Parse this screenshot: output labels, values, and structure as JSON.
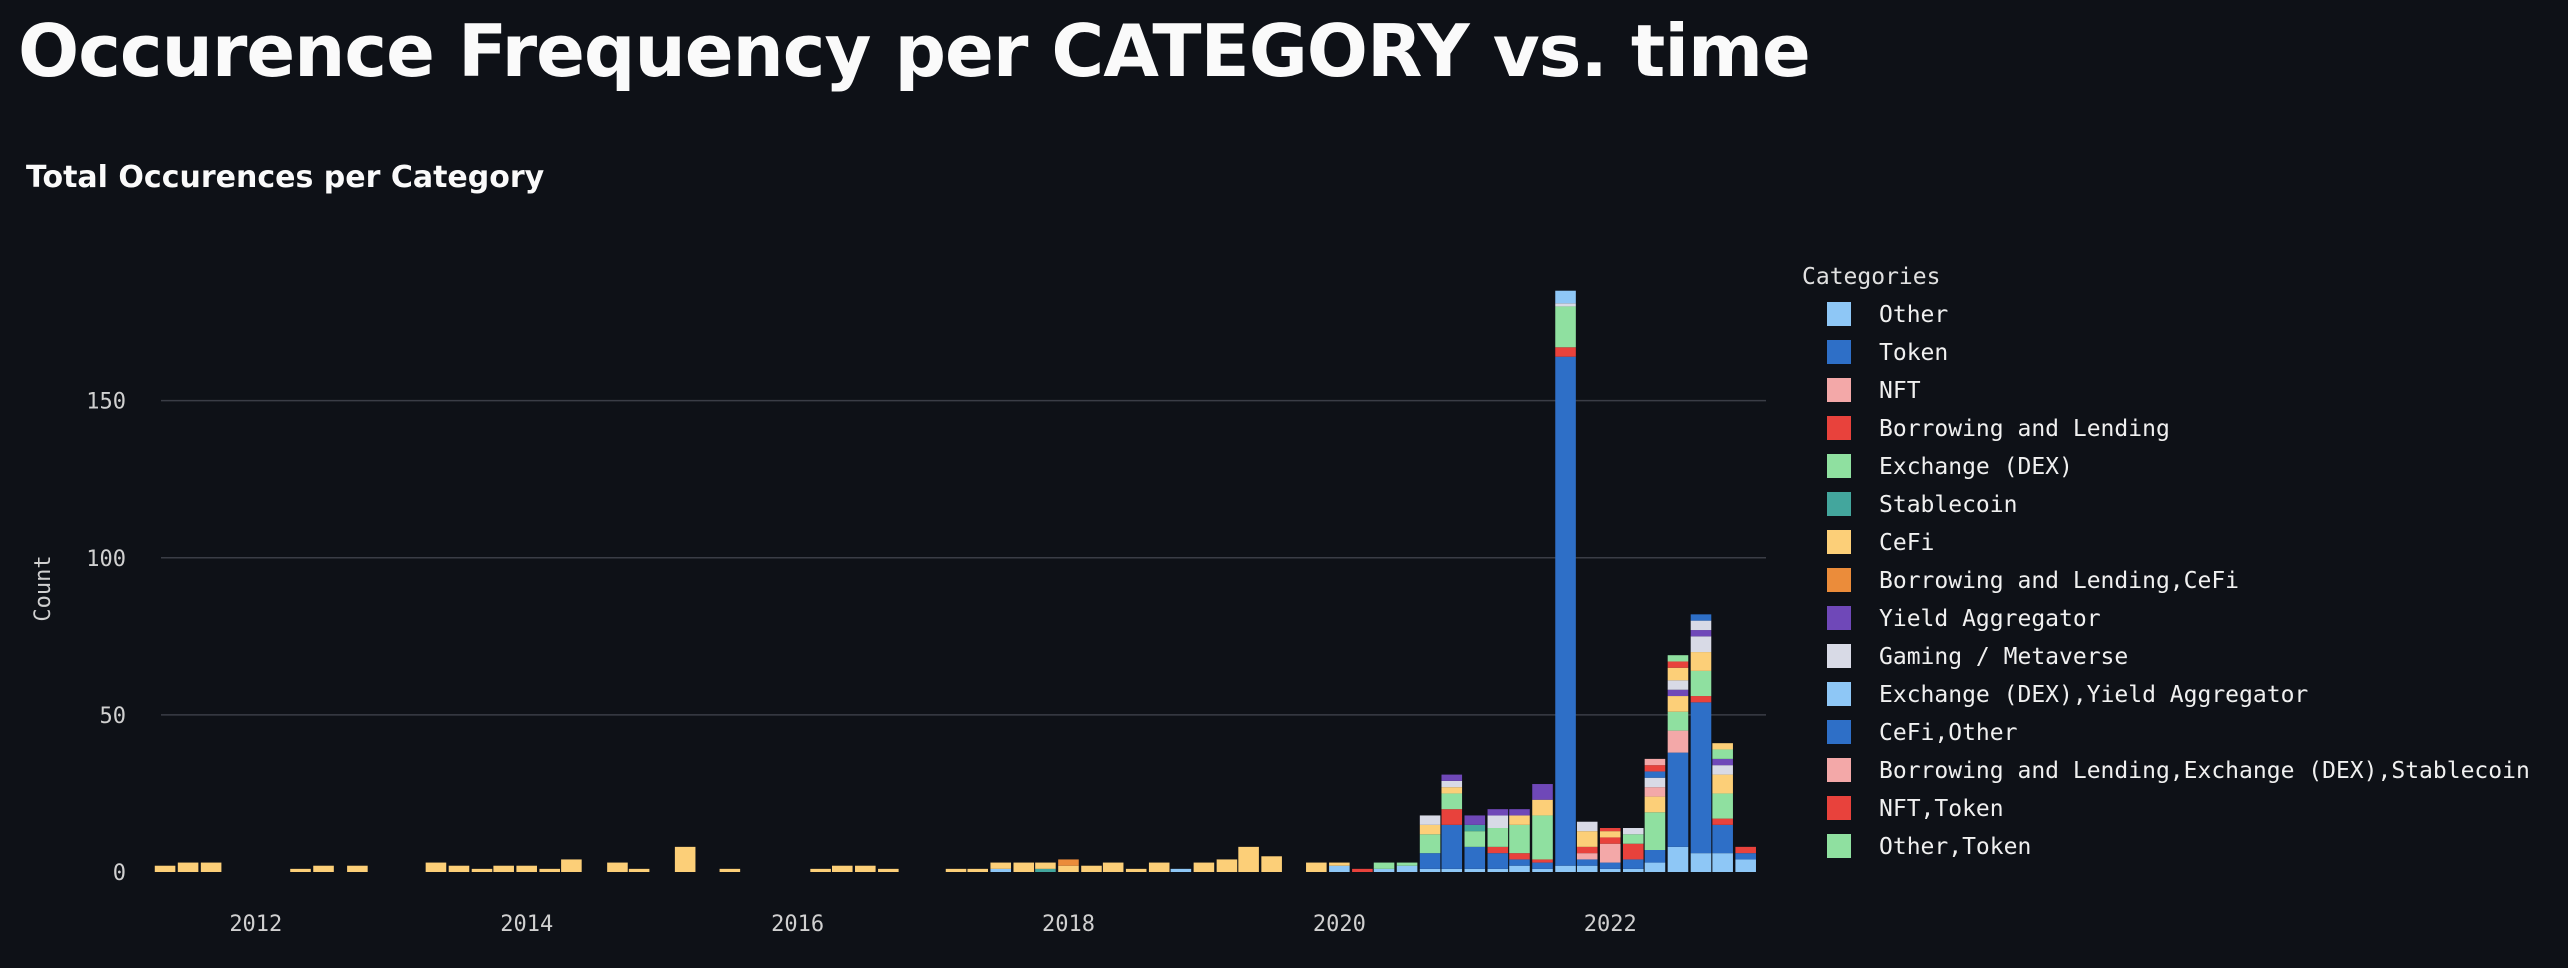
{
  "page": {
    "title": "Occurence Frequency per CATEGORY vs. time"
  },
  "chart_data": {
    "type": "bar",
    "stacked": true,
    "title": "Total Occurences per Category",
    "xlabel": "",
    "ylabel": "Count",
    "ylim": [
      0,
      190
    ],
    "xlim": [
      2011.3,
      2023.15
    ],
    "y_ticks": [
      0,
      50,
      100,
      150
    ],
    "x_ticks": [
      2012,
      2014,
      2016,
      2018,
      2020,
      2022
    ],
    "grid": "horizontal",
    "legend_title": "Categories",
    "legend_placement": "right",
    "bin_width_years": 0.1667,
    "colors": {
      "Other": "#8ec7f6",
      "Token": "#2e6fc7",
      "NFT": "#f3a8a8",
      "Borrowing and Lending": "#e8423c",
      "Exchange (DEX)": "#8fe0a0",
      "Stablecoin": "#43a69d",
      "CeFi": "#fccf78",
      "Borrowing and Lending,CeFi": "#eb8c3a",
      "Yield Aggregator": "#6f48b8",
      "Gaming / Metaverse": "#d8dae6",
      "Exchange (DEX),Yield Aggregator": "#8ec7f6",
      "CeFi,Other": "#2e6fc7",
      "Borrowing and Lending,Exchange (DEX),Stablecoin": "#f3a8a8",
      "NFT,Token": "#e8423c",
      "Other,Token": "#8fe0a0"
    },
    "legend": [
      "Other",
      "Token",
      "NFT",
      "Borrowing and Lending",
      "Exchange (DEX)",
      "Stablecoin",
      "CeFi",
      "Borrowing and Lending,CeFi",
      "Yield Aggregator",
      "Gaming / Metaverse",
      "Exchange (DEX),Yield Aggregator",
      "CeFi,Other",
      "Borrowing and Lending,Exchange (DEX),Stablecoin",
      "NFT,Token",
      "Other,Token"
    ],
    "bars": [
      {
        "x": 2011.33,
        "segments": [
          {
            "category": "CeFi",
            "value": 2
          }
        ]
      },
      {
        "x": 2011.5,
        "segments": [
          {
            "category": "CeFi",
            "value": 3
          }
        ]
      },
      {
        "x": 2011.67,
        "segments": [
          {
            "category": "CeFi",
            "value": 3
          }
        ]
      },
      {
        "x": 2012.33,
        "segments": [
          {
            "category": "CeFi",
            "value": 1
          }
        ]
      },
      {
        "x": 2012.5,
        "segments": [
          {
            "category": "CeFi",
            "value": 2
          }
        ]
      },
      {
        "x": 2012.75,
        "segments": [
          {
            "category": "CeFi",
            "value": 2
          }
        ]
      },
      {
        "x": 2013.33,
        "segments": [
          {
            "category": "CeFi",
            "value": 3
          }
        ]
      },
      {
        "x": 2013.5,
        "segments": [
          {
            "category": "CeFi",
            "value": 2
          }
        ]
      },
      {
        "x": 2013.67,
        "segments": [
          {
            "category": "CeFi",
            "value": 1
          }
        ]
      },
      {
        "x": 2013.83,
        "segments": [
          {
            "category": "CeFi",
            "value": 2
          }
        ]
      },
      {
        "x": 2014.0,
        "segments": [
          {
            "category": "CeFi",
            "value": 2
          }
        ]
      },
      {
        "x": 2014.17,
        "segments": [
          {
            "category": "CeFi",
            "value": 1
          }
        ]
      },
      {
        "x": 2014.33,
        "segments": [
          {
            "category": "CeFi",
            "value": 4
          }
        ]
      },
      {
        "x": 2014.67,
        "segments": [
          {
            "category": "CeFi",
            "value": 3
          }
        ]
      },
      {
        "x": 2014.83,
        "segments": [
          {
            "category": "CeFi",
            "value": 1
          }
        ]
      },
      {
        "x": 2015.17,
        "segments": [
          {
            "category": "CeFi",
            "value": 8
          }
        ]
      },
      {
        "x": 2015.5,
        "segments": [
          {
            "category": "CeFi",
            "value": 1
          }
        ]
      },
      {
        "x": 2016.17,
        "segments": [
          {
            "category": "CeFi",
            "value": 1
          }
        ]
      },
      {
        "x": 2016.33,
        "segments": [
          {
            "category": "CeFi",
            "value": 2
          }
        ]
      },
      {
        "x": 2016.5,
        "segments": [
          {
            "category": "CeFi",
            "value": 2
          }
        ]
      },
      {
        "x": 2016.67,
        "segments": [
          {
            "category": "CeFi",
            "value": 1
          }
        ]
      },
      {
        "x": 2017.17,
        "segments": [
          {
            "category": "CeFi",
            "value": 1
          }
        ]
      },
      {
        "x": 2017.33,
        "segments": [
          {
            "category": "CeFi",
            "value": 1
          }
        ]
      },
      {
        "x": 2017.5,
        "segments": [
          {
            "category": "Other",
            "value": 1
          },
          {
            "category": "CeFi",
            "value": 2
          }
        ]
      },
      {
        "x": 2017.67,
        "segments": [
          {
            "category": "CeFi",
            "value": 3
          }
        ]
      },
      {
        "x": 2017.83,
        "segments": [
          {
            "category": "Stablecoin",
            "value": 1
          },
          {
            "category": "CeFi",
            "value": 2
          }
        ]
      },
      {
        "x": 2018.0,
        "segments": [
          {
            "category": "CeFi",
            "value": 2
          },
          {
            "category": "Borrowing and Lending,CeFi",
            "value": 2
          }
        ]
      },
      {
        "x": 2018.17,
        "segments": [
          {
            "category": "CeFi",
            "value": 2
          }
        ]
      },
      {
        "x": 2018.33,
        "segments": [
          {
            "category": "CeFi",
            "value": 3
          }
        ]
      },
      {
        "x": 2018.5,
        "segments": [
          {
            "category": "CeFi",
            "value": 1
          }
        ]
      },
      {
        "x": 2018.67,
        "segments": [
          {
            "category": "CeFi",
            "value": 3
          }
        ]
      },
      {
        "x": 2018.83,
        "segments": [
          {
            "category": "Other",
            "value": 1
          }
        ]
      },
      {
        "x": 2019.0,
        "segments": [
          {
            "category": "CeFi",
            "value": 3
          }
        ]
      },
      {
        "x": 2019.17,
        "segments": [
          {
            "category": "CeFi",
            "value": 4
          }
        ]
      },
      {
        "x": 2019.33,
        "segments": [
          {
            "category": "CeFi",
            "value": 8
          }
        ]
      },
      {
        "x": 2019.5,
        "segments": [
          {
            "category": "CeFi",
            "value": 5
          }
        ]
      },
      {
        "x": 2019.83,
        "segments": [
          {
            "category": "CeFi",
            "value": 3
          }
        ]
      },
      {
        "x": 2020.0,
        "segments": [
          {
            "category": "Other",
            "value": 2
          },
          {
            "category": "CeFi",
            "value": 1
          }
        ]
      },
      {
        "x": 2020.17,
        "segments": [
          {
            "category": "Borrowing and Lending",
            "value": 1
          }
        ]
      },
      {
        "x": 2020.33,
        "segments": [
          {
            "category": "Other",
            "value": 1
          },
          {
            "category": "Exchange (DEX)",
            "value": 2
          }
        ]
      },
      {
        "x": 2020.5,
        "segments": [
          {
            "category": "Other",
            "value": 2
          },
          {
            "category": "Exchange (DEX)",
            "value": 1
          }
        ]
      },
      {
        "x": 2020.67,
        "segments": [
          {
            "category": "Other",
            "value": 1
          },
          {
            "category": "Token",
            "value": 5
          },
          {
            "category": "Exchange (DEX)",
            "value": 6
          },
          {
            "category": "CeFi",
            "value": 3
          },
          {
            "category": "Gaming / Metaverse",
            "value": 3
          }
        ]
      },
      {
        "x": 2020.83,
        "segments": [
          {
            "category": "Other",
            "value": 1
          },
          {
            "category": "Token",
            "value": 14
          },
          {
            "category": "Borrowing and Lending",
            "value": 5
          },
          {
            "category": "Exchange (DEX)",
            "value": 5
          },
          {
            "category": "CeFi",
            "value": 2
          },
          {
            "category": "Gaming / Metaverse",
            "value": 2
          },
          {
            "category": "Yield Aggregator",
            "value": 2
          }
        ]
      },
      {
        "x": 2021.0,
        "segments": [
          {
            "category": "Other",
            "value": 1
          },
          {
            "category": "Token",
            "value": 7
          },
          {
            "category": "Exchange (DEX)",
            "value": 5
          },
          {
            "category": "Stablecoin",
            "value": 2
          },
          {
            "category": "Yield Aggregator",
            "value": 3
          }
        ]
      },
      {
        "x": 2021.17,
        "segments": [
          {
            "category": "Other",
            "value": 1
          },
          {
            "category": "Token",
            "value": 5
          },
          {
            "category": "Borrowing and Lending",
            "value": 2
          },
          {
            "category": "Exchange (DEX)",
            "value": 6
          },
          {
            "category": "Gaming / Metaverse",
            "value": 4
          },
          {
            "category": "Yield Aggregator",
            "value": 2
          }
        ]
      },
      {
        "x": 2021.33,
        "segments": [
          {
            "category": "Other",
            "value": 2
          },
          {
            "category": "Token",
            "value": 2
          },
          {
            "category": "Borrowing and Lending",
            "value": 2
          },
          {
            "category": "Exchange (DEX)",
            "value": 9
          },
          {
            "category": "CeFi",
            "value": 3
          },
          {
            "category": "Yield Aggregator",
            "value": 2
          }
        ]
      },
      {
        "x": 2021.5,
        "segments": [
          {
            "category": "Other",
            "value": 1
          },
          {
            "category": "Token",
            "value": 2
          },
          {
            "category": "Borrowing and Lending",
            "value": 1
          },
          {
            "category": "Exchange (DEX)",
            "value": 14
          },
          {
            "category": "CeFi",
            "value": 5
          },
          {
            "category": "Yield Aggregator",
            "value": 5
          }
        ]
      },
      {
        "x": 2021.67,
        "segments": [
          {
            "category": "Other",
            "value": 2
          },
          {
            "category": "Token",
            "value": 162
          },
          {
            "category": "Borrowing and Lending",
            "value": 3
          },
          {
            "category": "Exchange (DEX)",
            "value": 13
          },
          {
            "category": "Gaming / Metaverse",
            "value": 1
          },
          {
            "category": "Exchange (DEX),Yield Aggregator",
            "value": 4
          }
        ]
      },
      {
        "x": 2021.83,
        "segments": [
          {
            "category": "Other",
            "value": 2
          },
          {
            "category": "Token",
            "value": 2
          },
          {
            "category": "NFT",
            "value": 2
          },
          {
            "category": "Borrowing and Lending",
            "value": 2
          },
          {
            "category": "CeFi",
            "value": 5
          },
          {
            "category": "Gaming / Metaverse",
            "value": 3
          }
        ]
      },
      {
        "x": 2022.0,
        "segments": [
          {
            "category": "Other",
            "value": 1
          },
          {
            "category": "Token",
            "value": 2
          },
          {
            "category": "NFT",
            "value": 6
          },
          {
            "category": "Borrowing and Lending",
            "value": 2
          },
          {
            "category": "CeFi",
            "value": 2
          },
          {
            "category": "NFT,Token",
            "value": 1
          }
        ]
      },
      {
        "x": 2022.17,
        "segments": [
          {
            "category": "Other",
            "value": 1
          },
          {
            "category": "Token",
            "value": 3
          },
          {
            "category": "Borrowing and Lending",
            "value": 5
          },
          {
            "category": "Exchange (DEX)",
            "value": 3
          },
          {
            "category": "Gaming / Metaverse",
            "value": 2
          }
        ]
      },
      {
        "x": 2022.33,
        "segments": [
          {
            "category": "Other",
            "value": 3
          },
          {
            "category": "Token",
            "value": 4
          },
          {
            "category": "Exchange (DEX)",
            "value": 12
          },
          {
            "category": "CeFi",
            "value": 5
          },
          {
            "category": "NFT",
            "value": 3
          },
          {
            "category": "Gaming / Metaverse",
            "value": 3
          },
          {
            "category": "Token",
            "value": 2
          },
          {
            "category": "Borrowing and Lending",
            "value": 2
          },
          {
            "category": "NFT",
            "value": 2
          }
        ]
      },
      {
        "x": 2022.5,
        "segments": [
          {
            "category": "Other",
            "value": 8
          },
          {
            "category": "Token",
            "value": 30
          },
          {
            "category": "NFT",
            "value": 7
          },
          {
            "category": "Exchange (DEX)",
            "value": 6
          },
          {
            "category": "CeFi",
            "value": 5
          },
          {
            "category": "Yield Aggregator",
            "value": 2
          },
          {
            "category": "Gaming / Metaverse",
            "value": 3
          },
          {
            "category": "CeFi",
            "value": 4
          },
          {
            "category": "Borrowing and Lending",
            "value": 2
          },
          {
            "category": "Exchange (DEX)",
            "value": 2
          }
        ]
      },
      {
        "x": 2022.67,
        "segments": [
          {
            "category": "Other",
            "value": 6
          },
          {
            "category": "Token",
            "value": 48
          },
          {
            "category": "Borrowing and Lending",
            "value": 2
          },
          {
            "category": "Exchange (DEX)",
            "value": 8
          },
          {
            "category": "CeFi",
            "value": 6
          },
          {
            "category": "Gaming / Metaverse",
            "value": 5
          },
          {
            "category": "Yield Aggregator",
            "value": 2
          },
          {
            "category": "Gaming / Metaverse",
            "value": 3
          },
          {
            "category": "Token",
            "value": 2
          }
        ]
      },
      {
        "x": 2022.83,
        "segments": [
          {
            "category": "Other",
            "value": 6
          },
          {
            "category": "Token",
            "value": 9
          },
          {
            "category": "Borrowing and Lending",
            "value": 2
          },
          {
            "category": "Exchange (DEX)",
            "value": 8
          },
          {
            "category": "CeFi",
            "value": 6
          },
          {
            "category": "Gaming / Metaverse",
            "value": 3
          },
          {
            "category": "Yield Aggregator",
            "value": 2
          },
          {
            "category": "Exchange (DEX)",
            "value": 3
          },
          {
            "category": "CeFi",
            "value": 2
          }
        ]
      },
      {
        "x": 2023.0,
        "segments": [
          {
            "category": "Other",
            "value": 4
          },
          {
            "category": "Token",
            "value": 2
          },
          {
            "category": "Borrowing and Lending",
            "value": 2
          }
        ]
      }
    ]
  }
}
